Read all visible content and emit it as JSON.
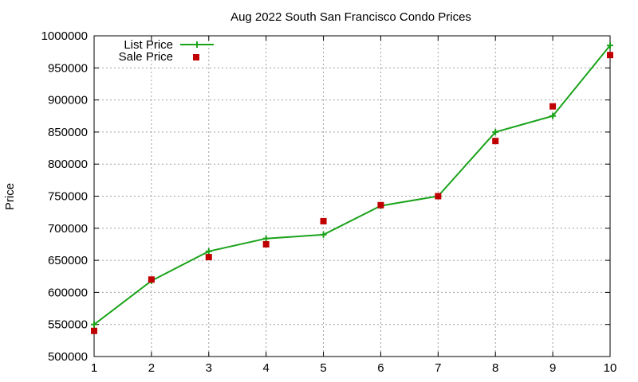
{
  "chart_data": {
    "type": "line",
    "title": "Aug 2022 South San Francisco Condo Prices",
    "xlabel": "",
    "ylabel": "Price",
    "x": [
      1,
      2,
      3,
      4,
      5,
      6,
      7,
      8,
      9,
      10
    ],
    "xlim": [
      1,
      10
    ],
    "ylim": [
      500000,
      1000000
    ],
    "y_ticks": [
      500000,
      550000,
      600000,
      650000,
      700000,
      750000,
      800000,
      850000,
      900000,
      950000,
      1000000
    ],
    "x_ticks": [
      1,
      2,
      3,
      4,
      5,
      6,
      7,
      8,
      9,
      10
    ],
    "grid": true,
    "legend_position": "top-left",
    "series": [
      {
        "name": "List Price",
        "style": "line-with-plus-markers",
        "color": "#1aa31a",
        "values": [
          550000,
          618000,
          664000,
          684000,
          690000,
          735000,
          750000,
          850000,
          875000,
          985000
        ]
      },
      {
        "name": "Sale Price",
        "style": "square-markers",
        "color": "#c00000",
        "values": [
          540000,
          620000,
          655000,
          675000,
          711000,
          736000,
          750000,
          836000,
          890000,
          970000
        ]
      }
    ]
  }
}
